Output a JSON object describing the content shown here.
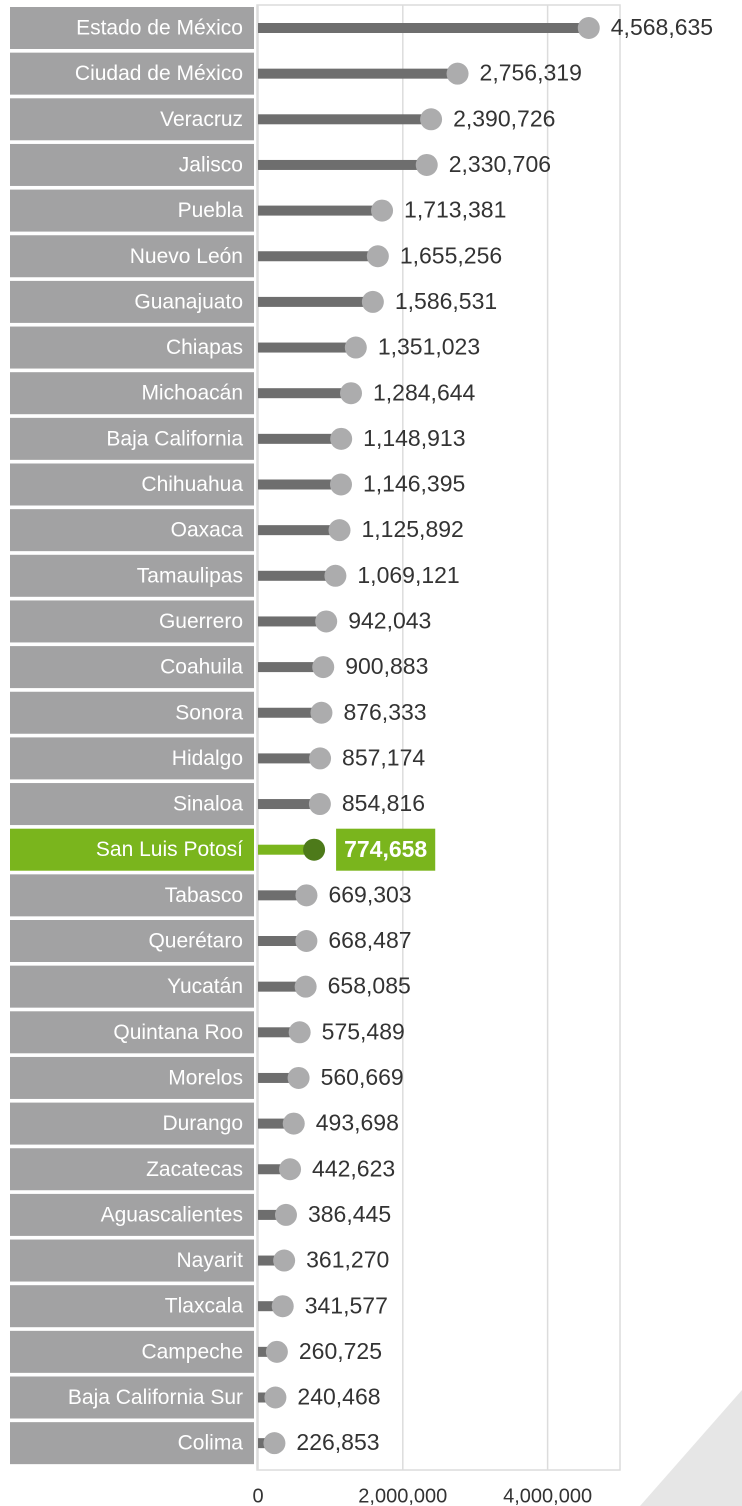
{
  "chart_data": {
    "type": "lollipop",
    "categories": [
      "Estado de México",
      "Ciudad de México",
      "Veracruz",
      "Jalisco",
      "Puebla",
      "Nuevo León",
      "Guanajuato",
      "Chiapas",
      "Michoacán",
      "Baja California",
      "Chihuahua",
      "Oaxaca",
      "Tamaulipas",
      "Guerrero",
      "Coahuila",
      "Sonora",
      "Hidalgo",
      "Sinaloa",
      "San Luis Potosí",
      "Tabasco",
      "Querétaro",
      "Yucatán",
      "Quintana Roo",
      "Morelos",
      "Durango",
      "Zacatecas",
      "Aguascalientes",
      "Nayarit",
      "Tlaxcala",
      "Campeche",
      "Baja California Sur",
      "Colima"
    ],
    "values": [
      4568635,
      2756319,
      2390726,
      2330706,
      1713381,
      1655256,
      1586531,
      1351023,
      1284644,
      1148913,
      1146395,
      1125892,
      1069121,
      942043,
      900883,
      876333,
      857174,
      854816,
      774658,
      669303,
      668487,
      658085,
      575489,
      560669,
      493698,
      442623,
      386445,
      361270,
      341577,
      260725,
      240468,
      226853
    ],
    "value_labels": [
      "4,568,635",
      "2,756,319",
      "2,390,726",
      "2,330,706",
      "1,713,381",
      "1,655,256",
      "1,586,531",
      "1,351,023",
      "1,284,644",
      "1,148,913",
      "1,146,395",
      "1,125,892",
      "1,069,121",
      "942,043",
      "900,883",
      "876,333",
      "857,174",
      "854,816",
      "774,658",
      "669,303",
      "668,487",
      "658,085",
      "575,489",
      "560,669",
      "493,698",
      "442,623",
      "386,445",
      "361,270",
      "341,577",
      "260,725",
      "240,468",
      "226,853"
    ],
    "color": "#6e6e6e",
    "dot_color": "#acacad",
    "label_box_color": "#a2a2a3",
    "highlight": {
      "index": 18,
      "color": "#7ab51d",
      "dot_color": "#4d7a1a"
    },
    "xlim": [
      0,
      5000000
    ],
    "xticks": [
      0,
      {
        "value": 2000000,
        "label": "2,000,000"
      },
      {
        "value": 4000000,
        "label": "4,000,000"
      }
    ],
    "grid": true
  }
}
